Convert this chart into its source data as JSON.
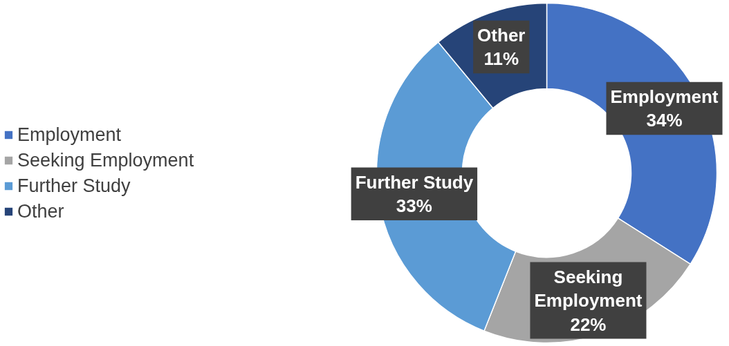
{
  "chart_data": {
    "type": "donut",
    "categories": [
      "Employment",
      "Seeking Employment",
      "Further Study",
      "Other"
    ],
    "values": [
      34,
      22,
      33,
      11
    ],
    "colors": [
      "#4472c4",
      "#a5a5a5",
      "#5b9bd5",
      "#264478"
    ],
    "value_labels": [
      "Employment\n34%",
      "Seeking\nEmployment\n22%",
      "Further Study\n33%",
      "Other\n11%"
    ],
    "legend": "left"
  }
}
